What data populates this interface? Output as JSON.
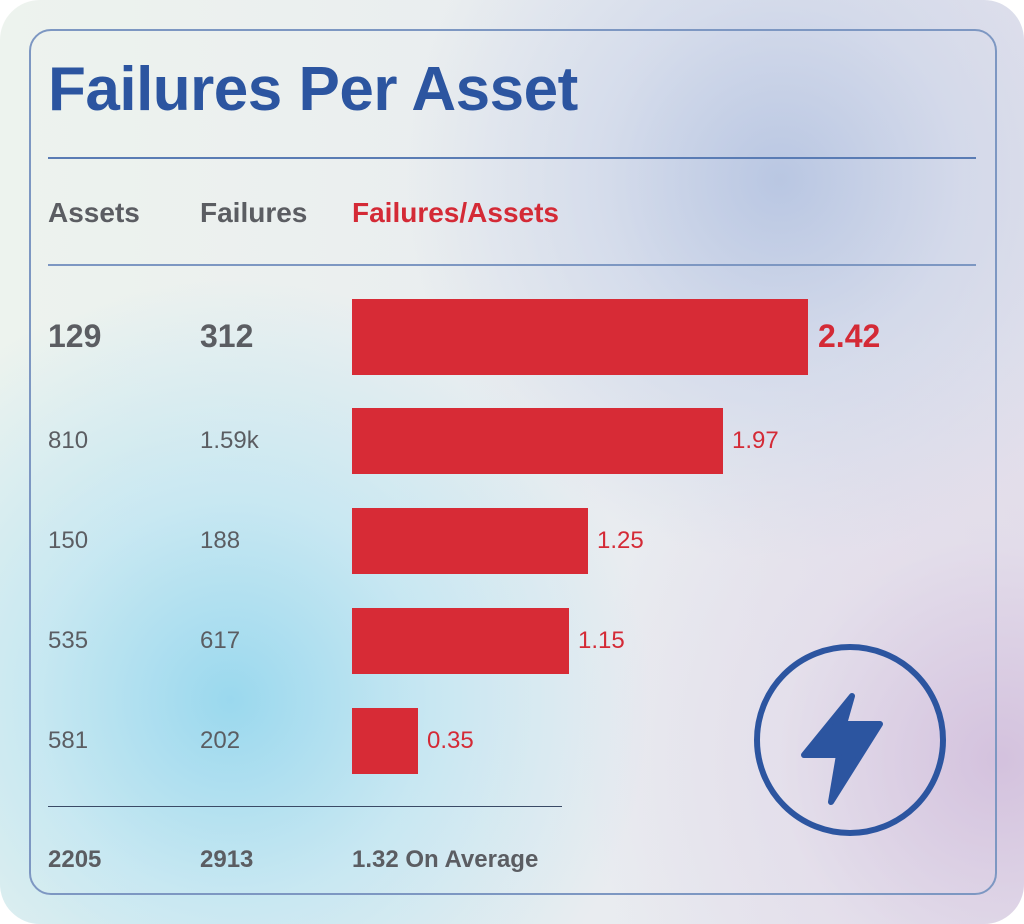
{
  "title": "Failures Per Asset",
  "headers": {
    "assets": "Assets",
    "failures": "Failures",
    "ratio": "Failures/Assets"
  },
  "chart_data": {
    "type": "bar",
    "orientation": "horizontal",
    "title": "Failures Per Asset",
    "rows": [
      {
        "assets": "129",
        "failures": "312",
        "ratio": 2.42,
        "label": "2.42",
        "highlight": true
      },
      {
        "assets": "810",
        "failures": "1.59k",
        "ratio": 1.97,
        "label": "1.97"
      },
      {
        "assets": "150",
        "failures": "188",
        "ratio": 1.25,
        "label": "1.25"
      },
      {
        "assets": "535",
        "failures": "617",
        "ratio": 1.15,
        "label": "1.15"
      },
      {
        "assets": "581",
        "failures": "202",
        "ratio": 0.35,
        "label": "0.35"
      }
    ],
    "xlim": [
      0,
      2.42
    ],
    "grid": false
  },
  "totals": {
    "assets": "2205",
    "failures": "2913",
    "average": "1.32 On Average"
  },
  "icon": "lightning-bolt-icon",
  "colors": {
    "title": "#2c55a0",
    "bar": "#d72b36",
    "text": "#5b5d62",
    "accent": "#d42a36"
  }
}
